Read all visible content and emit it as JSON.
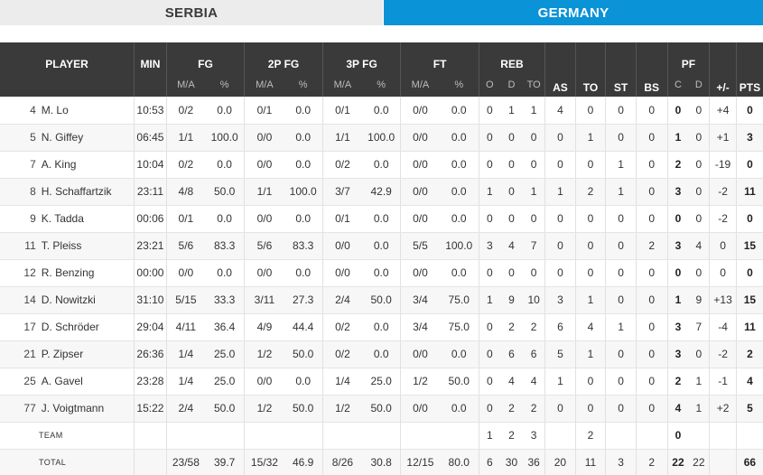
{
  "tabs": {
    "team1": "SERBIA",
    "team2": "GERMANY"
  },
  "headers": {
    "player": "PLAYER",
    "min": "MIN",
    "fg": "FG",
    "fg2": "2P FG",
    "fg3": "3P FG",
    "ft": "FT",
    "reb": "REB",
    "as": "AS",
    "to": "TO",
    "st": "ST",
    "bs": "BS",
    "pf": "PF",
    "pm": "+/-",
    "pts": "PTS",
    "ma": "M/A",
    "pct": "%",
    "o": "O",
    "d": "D",
    "tot": "TO",
    "c": "C",
    "pfd": "D"
  },
  "players": [
    {
      "num": "4",
      "name": "M. Lo",
      "min": "10:53",
      "fg_ma": "0/2",
      "fg_pct": "0.0",
      "p2_ma": "0/1",
      "p2_pct": "0.0",
      "p3_ma": "0/1",
      "p3_pct": "0.0",
      "ft_ma": "0/0",
      "ft_pct": "0.0",
      "reb_o": "0",
      "reb_d": "1",
      "reb_t": "1",
      "as": "4",
      "to": "0",
      "st": "0",
      "bs": "0",
      "pf_c": "0",
      "pf_d": "0",
      "pm": "+4",
      "pts": "0"
    },
    {
      "num": "5",
      "name": "N. Giffey",
      "min": "06:45",
      "fg_ma": "1/1",
      "fg_pct": "100.0",
      "p2_ma": "0/0",
      "p2_pct": "0.0",
      "p3_ma": "1/1",
      "p3_pct": "100.0",
      "ft_ma": "0/0",
      "ft_pct": "0.0",
      "reb_o": "0",
      "reb_d": "0",
      "reb_t": "0",
      "as": "0",
      "to": "1",
      "st": "0",
      "bs": "0",
      "pf_c": "1",
      "pf_d": "0",
      "pm": "+1",
      "pts": "3"
    },
    {
      "num": "7",
      "name": "A. King",
      "min": "10:04",
      "fg_ma": "0/2",
      "fg_pct": "0.0",
      "p2_ma": "0/0",
      "p2_pct": "0.0",
      "p3_ma": "0/2",
      "p3_pct": "0.0",
      "ft_ma": "0/0",
      "ft_pct": "0.0",
      "reb_o": "0",
      "reb_d": "0",
      "reb_t": "0",
      "as": "0",
      "to": "0",
      "st": "1",
      "bs": "0",
      "pf_c": "2",
      "pf_d": "0",
      "pm": "-19",
      "pts": "0"
    },
    {
      "num": "8",
      "name": "H. Schaffartzik",
      "min": "23:11",
      "fg_ma": "4/8",
      "fg_pct": "50.0",
      "p2_ma": "1/1",
      "p2_pct": "100.0",
      "p3_ma": "3/7",
      "p3_pct": "42.9",
      "ft_ma": "0/0",
      "ft_pct": "0.0",
      "reb_o": "1",
      "reb_d": "0",
      "reb_t": "1",
      "as": "1",
      "to": "2",
      "st": "1",
      "bs": "0",
      "pf_c": "3",
      "pf_d": "0",
      "pm": "-2",
      "pts": "11"
    },
    {
      "num": "9",
      "name": "K. Tadda",
      "min": "00:06",
      "fg_ma": "0/1",
      "fg_pct": "0.0",
      "p2_ma": "0/0",
      "p2_pct": "0.0",
      "p3_ma": "0/1",
      "p3_pct": "0.0",
      "ft_ma": "0/0",
      "ft_pct": "0.0",
      "reb_o": "0",
      "reb_d": "0",
      "reb_t": "0",
      "as": "0",
      "to": "0",
      "st": "0",
      "bs": "0",
      "pf_c": "0",
      "pf_d": "0",
      "pm": "-2",
      "pts": "0"
    },
    {
      "num": "11",
      "name": "T. Pleiss",
      "min": "23:21",
      "fg_ma": "5/6",
      "fg_pct": "83.3",
      "p2_ma": "5/6",
      "p2_pct": "83.3",
      "p3_ma": "0/0",
      "p3_pct": "0.0",
      "ft_ma": "5/5",
      "ft_pct": "100.0",
      "reb_o": "3",
      "reb_d": "4",
      "reb_t": "7",
      "as": "0",
      "to": "0",
      "st": "0",
      "bs": "2",
      "pf_c": "3",
      "pf_d": "4",
      "pm": "0",
      "pts": "15"
    },
    {
      "num": "12",
      "name": "R. Benzing",
      "min": "00:00",
      "fg_ma": "0/0",
      "fg_pct": "0.0",
      "p2_ma": "0/0",
      "p2_pct": "0.0",
      "p3_ma": "0/0",
      "p3_pct": "0.0",
      "ft_ma": "0/0",
      "ft_pct": "0.0",
      "reb_o": "0",
      "reb_d": "0",
      "reb_t": "0",
      "as": "0",
      "to": "0",
      "st": "0",
      "bs": "0",
      "pf_c": "0",
      "pf_d": "0",
      "pm": "0",
      "pts": "0"
    },
    {
      "num": "14",
      "name": "D. Nowitzki",
      "min": "31:10",
      "fg_ma": "5/15",
      "fg_pct": "33.3",
      "p2_ma": "3/11",
      "p2_pct": "27.3",
      "p3_ma": "2/4",
      "p3_pct": "50.0",
      "ft_ma": "3/4",
      "ft_pct": "75.0",
      "reb_o": "1",
      "reb_d": "9",
      "reb_t": "10",
      "as": "3",
      "to": "1",
      "st": "0",
      "bs": "0",
      "pf_c": "1",
      "pf_d": "9",
      "pm": "+13",
      "pts": "15"
    },
    {
      "num": "17",
      "name": "D. Schröder",
      "min": "29:04",
      "fg_ma": "4/11",
      "fg_pct": "36.4",
      "p2_ma": "4/9",
      "p2_pct": "44.4",
      "p3_ma": "0/2",
      "p3_pct": "0.0",
      "ft_ma": "3/4",
      "ft_pct": "75.0",
      "reb_o": "0",
      "reb_d": "2",
      "reb_t": "2",
      "as": "6",
      "to": "4",
      "st": "1",
      "bs": "0",
      "pf_c": "3",
      "pf_d": "7",
      "pm": "-4",
      "pts": "11"
    },
    {
      "num": "21",
      "name": "P. Zipser",
      "min": "26:36",
      "fg_ma": "1/4",
      "fg_pct": "25.0",
      "p2_ma": "1/2",
      "p2_pct": "50.0",
      "p3_ma": "0/2",
      "p3_pct": "0.0",
      "ft_ma": "0/0",
      "ft_pct": "0.0",
      "reb_o": "0",
      "reb_d": "6",
      "reb_t": "6",
      "as": "5",
      "to": "1",
      "st": "0",
      "bs": "0",
      "pf_c": "3",
      "pf_d": "0",
      "pm": "-2",
      "pts": "2"
    },
    {
      "num": "25",
      "name": "A. Gavel",
      "min": "23:28",
      "fg_ma": "1/4",
      "fg_pct": "25.0",
      "p2_ma": "0/0",
      "p2_pct": "0.0",
      "p3_ma": "1/4",
      "p3_pct": "25.0",
      "ft_ma": "1/2",
      "ft_pct": "50.0",
      "reb_o": "0",
      "reb_d": "4",
      "reb_t": "4",
      "as": "1",
      "to": "0",
      "st": "0",
      "bs": "0",
      "pf_c": "2",
      "pf_d": "1",
      "pm": "-1",
      "pts": "4"
    },
    {
      "num": "77",
      "name": "J. Voigtmann",
      "min": "15:22",
      "fg_ma": "2/4",
      "fg_pct": "50.0",
      "p2_ma": "1/2",
      "p2_pct": "50.0",
      "p3_ma": "1/2",
      "p3_pct": "50.0",
      "ft_ma": "0/0",
      "ft_pct": "0.0",
      "reb_o": "0",
      "reb_d": "2",
      "reb_t": "2",
      "as": "0",
      "to": "0",
      "st": "0",
      "bs": "0",
      "pf_c": "4",
      "pf_d": "1",
      "pm": "+2",
      "pts": "5"
    }
  ],
  "team_row": {
    "label": "TEAM",
    "reb_o": "1",
    "reb_d": "2",
    "reb_t": "3",
    "to": "2",
    "pf_c": "0"
  },
  "total_row": {
    "label": "TOTAL",
    "fg_ma": "23/58",
    "fg_pct": "39.7",
    "p2_ma": "15/32",
    "p2_pct": "46.9",
    "p3_ma": "8/26",
    "p3_pct": "30.8",
    "ft_ma": "12/15",
    "ft_pct": "80.0",
    "reb_o": "6",
    "reb_d": "30",
    "reb_t": "36",
    "as": "20",
    "to": "11",
    "st": "3",
    "bs": "2",
    "pf_c": "22",
    "pf_d": "22",
    "pts": "66"
  },
  "colors": {
    "header_bg": "#3a3a3a",
    "active_tab": "#0a93d6",
    "inactive_tab": "#ececec"
  }
}
